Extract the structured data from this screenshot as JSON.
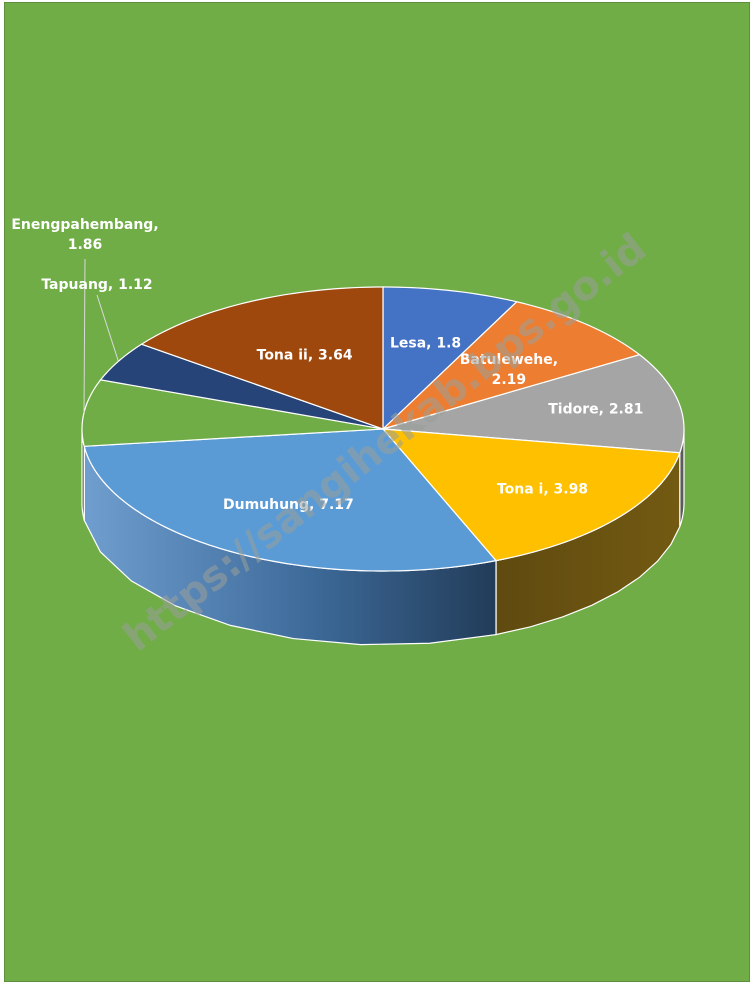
{
  "chart_data": {
    "type": "pie",
    "style": "3d",
    "title": "",
    "categories": [
      "Lesa",
      "Batulewehe",
      "Tidore",
      "Tona i",
      "Dumuhung",
      "Enengpahembang",
      "Tapuang",
      "Tona ii"
    ],
    "values": [
      1.8,
      2.19,
      2.81,
      3.98,
      7.17,
      1.86,
      1.12,
      3.64
    ],
    "labels": [
      "Lesa, 1.8",
      "Batulewehe, 2.19",
      "Tidore, 2.81",
      "Tona i, 3.98",
      "Dumuhung, 7.17",
      "Enengpahembang, 1.86",
      "Tapuang, 1.12",
      "Tona ii, 3.64"
    ],
    "colors": [
      "#4472c4",
      "#ed7d31",
      "#a5a5a5",
      "#ffc000",
      "#5b9bd5",
      "#70ad47",
      "#264478",
      "#9e480e"
    ],
    "legend": "none",
    "watermark": "https://sangihekab.bps.go.id"
  }
}
